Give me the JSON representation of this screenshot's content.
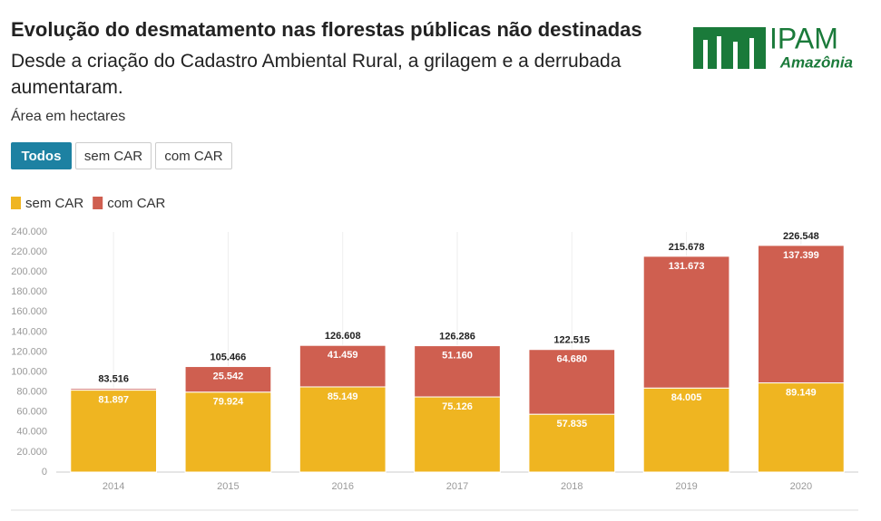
{
  "header": {
    "logo_main": "IPAM",
    "logo_sub": "Amazônia"
  },
  "buttons": [
    "Todos",
    "sem CAR",
    "com CAR"
  ],
  "chart_data": {
    "type": "stacked-bar",
    "title": "Evolução do desmatamento nas florestas públicas não destinadas",
    "subtitle": "Desde a criação do Cadastro Ambiental Rural, a grilagem e a derrubada aumentaram.",
    "note": "Área em hectares",
    "categories": [
      "2014",
      "2015",
      "2016",
      "2017",
      "2018",
      "2019",
      "2020"
    ],
    "series": [
      {
        "name": "sem CAR",
        "color": "#efb521",
        "values": [
          81897,
          79924,
          85149,
          75126,
          57835,
          84005,
          89149
        ],
        "value_labels": [
          "81.897",
          "79.924",
          "85.149",
          "75.126",
          "57.835",
          "84.005",
          "89.149"
        ]
      },
      {
        "name": "com CAR",
        "color": "#cf5f50",
        "values": [
          1619,
          25542,
          41459,
          51160,
          64680,
          131673,
          137399
        ],
        "value_labels": [
          null,
          "25.542",
          "41.459",
          "51.160",
          "64.680",
          "131.673",
          "137.399"
        ]
      }
    ],
    "totals": {
      "values": [
        83516,
        105466,
        126608,
        126286,
        122515,
        215678,
        226548
      ],
      "value_labels": [
        "83.516",
        "105.466",
        "126.608",
        "126.286",
        "122.515",
        "215.678",
        "226.548"
      ]
    },
    "ylim": [
      0,
      240000
    ],
    "yticks": [
      0,
      {
        "value": 20000,
        "label": "20.000"
      },
      {
        "value": 40000,
        "label": "40.000"
      },
      {
        "value": 60000,
        "label": "60.000"
      },
      {
        "value": 80000,
        "label": "80.000"
      },
      {
        "value": 100000,
        "label": "100.000"
      },
      {
        "value": 120000,
        "label": "120.000"
      },
      {
        "value": 140000,
        "label": "140.000"
      },
      {
        "value": 160000,
        "label": "160.000"
      },
      {
        "value": 180000,
        "label": "180.000"
      },
      {
        "value": 200000,
        "label": "200.000"
      },
      {
        "value": 220000,
        "label": "220.000"
      },
      {
        "value": 240000,
        "label": "240.000"
      }
    ],
    "grid": true
  }
}
